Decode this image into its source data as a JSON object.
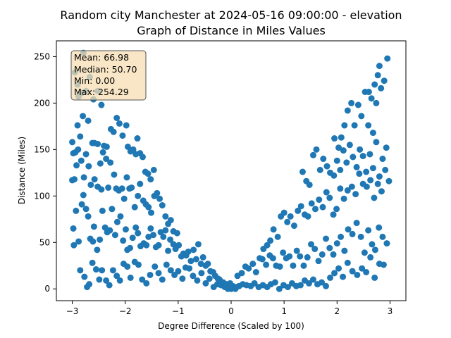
{
  "chart_data": {
    "type": "scatter",
    "title": [
      "Random city Manchester at 2024-05-16 09:00:00  - elevation",
      "Graph of Distance in Miles Values"
    ],
    "xlabel": "Degree Difference (Scaled by 100)",
    "ylabel": "Distance (Miles)",
    "xlim": [
      -3.3,
      3.3
    ],
    "ylim": [
      -12.7,
      267.0
    ],
    "xticks": [
      -3,
      -2,
      -1,
      0,
      1,
      2,
      3
    ],
    "yticks": [
      0,
      50,
      100,
      150,
      200,
      250
    ],
    "color": "#1f77b4",
    "grid": false,
    "stats_box": {
      "lines": [
        "Mean: 66.98",
        "Median: 50.70",
        "Min: 0.00",
        "Max: 254.29"
      ],
      "placement": "top-left",
      "background": "#f5deb3",
      "border": "#555555"
    },
    "points": [
      [
        -2.95,
        233
      ],
      [
        -2.9,
        220
      ],
      [
        -2.88,
        207
      ],
      [
        -2.82,
        211
      ],
      [
        -2.79,
        254
      ],
      [
        -2.74,
        213
      ],
      [
        -2.67,
        228
      ],
      [
        -2.6,
        204
      ],
      [
        -2.52,
        213
      ],
      [
        -2.45,
        198
      ],
      [
        -3.0,
        158
      ],
      [
        -2.98,
        146
      ],
      [
        -2.94,
        147
      ],
      [
        -2.9,
        176
      ],
      [
        -2.85,
        164
      ],
      [
        -2.8,
        186
      ],
      [
        -2.7,
        181
      ],
      [
        -2.62,
        157
      ],
      [
        -2.58,
        157
      ],
      [
        -2.52,
        156
      ],
      [
        -2.47,
        135
      ],
      [
        -2.4,
        154
      ],
      [
        -2.35,
        153
      ],
      [
        -2.27,
        172
      ],
      [
        -2.22,
        169
      ],
      [
        -2.16,
        184
      ],
      [
        -2.11,
        178
      ],
      [
        -2.05,
        165
      ],
      [
        -1.98,
        176
      ],
      [
        -1.95,
        153
      ],
      [
        -1.9,
        148
      ],
      [
        -1.85,
        150
      ],
      [
        -1.8,
        145
      ],
      [
        -1.77,
        162
      ],
      [
        -1.72,
        146
      ],
      [
        -1.67,
        142
      ],
      [
        -1.62,
        126
      ],
      [
        -1.57,
        124
      ],
      [
        -1.52,
        118
      ],
      [
        -1.46,
        128
      ],
      [
        -3.0,
        117
      ],
      [
        -2.96,
        118
      ],
      [
        -2.92,
        133
      ],
      [
        -2.89,
        150
      ],
      [
        -2.83,
        138
      ],
      [
        -2.78,
        120
      ],
      [
        -2.74,
        145
      ],
      [
        -2.69,
        132
      ],
      [
        -2.65,
        112
      ],
      [
        -2.58,
        118
      ],
      [
        -2.52,
        110
      ],
      [
        -2.45,
        107
      ],
      [
        -2.42,
        147
      ],
      [
        -2.36,
        140
      ],
      [
        -2.32,
        109
      ],
      [
        -2.28,
        136
      ],
      [
        -2.21,
        123
      ],
      [
        -2.17,
        108
      ],
      [
        -2.12,
        106
      ],
      [
        -2.06,
        108
      ],
      [
        -2.02,
        97
      ],
      [
        -1.97,
        120
      ],
      [
        -1.92,
        108
      ],
      [
        -1.88,
        109
      ],
      [
        -1.82,
        88
      ],
      [
        -1.76,
        100
      ],
      [
        -1.72,
        113
      ],
      [
        -1.66,
        95
      ],
      [
        -1.61,
        91
      ],
      [
        -1.56,
        88
      ],
      [
        -1.51,
        82
      ],
      [
        -1.45,
        100
      ],
      [
        -1.4,
        103
      ],
      [
        -1.35,
        97
      ],
      [
        -1.3,
        90
      ],
      [
        -1.24,
        78
      ],
      [
        -1.19,
        70
      ],
      [
        -1.14,
        74
      ],
      [
        -1.09,
        62
      ],
      [
        -1.02,
        60
      ],
      [
        -2.98,
        65
      ],
      [
        -2.97,
        47
      ],
      [
        -2.93,
        84
      ],
      [
        -2.88,
        51
      ],
      [
        -2.82,
        91
      ],
      [
        -2.79,
        101
      ],
      [
        -2.74,
        86
      ],
      [
        -2.7,
        78
      ],
      [
        -2.66,
        54
      ],
      [
        -2.61,
        51
      ],
      [
        -2.59,
        67
      ],
      [
        -2.53,
        42
      ],
      [
        -2.48,
        53
      ],
      [
        -2.43,
        84
      ],
      [
        -2.38,
        66
      ],
      [
        -2.34,
        61
      ],
      [
        -2.29,
        63
      ],
      [
        -2.25,
        86
      ],
      [
        -2.19,
        58
      ],
      [
        -2.15,
        72
      ],
      [
        -2.09,
        78
      ],
      [
        -2.04,
        52
      ],
      [
        -1.99,
        64
      ],
      [
        -1.96,
        42
      ],
      [
        -1.91,
        44
      ],
      [
        -1.86,
        55
      ],
      [
        -1.8,
        66
      ],
      [
        -1.76,
        60
      ],
      [
        -1.71,
        46
      ],
      [
        -1.65,
        49
      ],
      [
        -1.6,
        47
      ],
      [
        -1.56,
        56
      ],
      [
        -1.52,
        65
      ],
      [
        -1.47,
        58
      ],
      [
        -1.42,
        45
      ],
      [
        -1.37,
        47
      ],
      [
        -1.33,
        61
      ],
      [
        -1.28,
        56
      ],
      [
        -1.24,
        63
      ],
      [
        -1.19,
        41
      ],
      [
        -1.15,
        53
      ],
      [
        -1.09,
        48
      ],
      [
        -1.05,
        43
      ],
      [
        -0.99,
        47
      ],
      [
        -0.94,
        35
      ],
      [
        -0.9,
        38
      ],
      [
        -0.85,
        36
      ],
      [
        -0.81,
        40
      ],
      [
        -0.76,
        30
      ],
      [
        -0.71,
        42
      ],
      [
        -0.66,
        32
      ],
      [
        -0.62,
        48
      ],
      [
        -0.57,
        27
      ],
      [
        -0.53,
        34
      ],
      [
        -0.48,
        25
      ],
      [
        -0.44,
        27
      ],
      [
        -0.39,
        19
      ],
      [
        -0.34,
        18
      ],
      [
        -0.3,
        14
      ],
      [
        -0.25,
        11
      ],
      [
        -2.85,
        20
      ],
      [
        -2.77,
        13
      ],
      [
        -2.72,
        2
      ],
      [
        -2.68,
        5
      ],
      [
        -2.62,
        28
      ],
      [
        -2.55,
        21
      ],
      [
        -2.49,
        10
      ],
      [
        -2.44,
        20
      ],
      [
        -2.36,
        9
      ],
      [
        -2.3,
        4
      ],
      [
        -2.23,
        20
      ],
      [
        -2.16,
        14
      ],
      [
        -2.1,
        9
      ],
      [
        -2.03,
        27
      ],
      [
        -1.96,
        24
      ],
      [
        -1.9,
        12
      ],
      [
        -1.82,
        29
      ],
      [
        -1.75,
        26
      ],
      [
        -1.68,
        10
      ],
      [
        -1.6,
        6
      ],
      [
        -1.53,
        15
      ],
      [
        -1.44,
        24
      ],
      [
        -1.37,
        17
      ],
      [
        -1.3,
        10
      ],
      [
        -1.22,
        26
      ],
      [
        -1.14,
        20
      ],
      [
        -1.07,
        15
      ],
      [
        -1.0,
        19
      ],
      [
        -0.92,
        11
      ],
      [
        -0.86,
        23
      ],
      [
        -0.79,
        22
      ],
      [
        -0.72,
        14
      ],
      [
        -0.64,
        9
      ],
      [
        -0.56,
        17
      ],
      [
        -0.48,
        6
      ],
      [
        -0.41,
        11
      ],
      [
        -0.33,
        2
      ],
      [
        -0.26,
        5
      ],
      [
        -0.19,
        4
      ],
      [
        -0.12,
        2
      ],
      [
        -0.06,
        0
      ],
      [
        0.0,
        0
      ],
      [
        0.05,
        1
      ],
      [
        0.1,
        2
      ],
      [
        -0.15,
        7
      ],
      [
        -0.22,
        10
      ],
      [
        -0.09,
        5
      ],
      [
        0.03,
        3
      ],
      [
        -0.02,
        6
      ],
      [
        0.08,
        0
      ],
      [
        0.15,
        3
      ],
      [
        0.22,
        5
      ],
      [
        0.29,
        4
      ],
      [
        0.37,
        3
      ],
      [
        0.44,
        6
      ],
      [
        0.52,
        2
      ],
      [
        0.6,
        4
      ],
      [
        0.68,
        2
      ],
      [
        0.75,
        5
      ],
      [
        0.83,
        7
      ],
      [
        0.91,
        0
      ],
      [
        0.99,
        4
      ],
      [
        1.07,
        2
      ],
      [
        1.15,
        6
      ],
      [
        1.23,
        3
      ],
      [
        1.31,
        4
      ],
      [
        1.39,
        9
      ],
      [
        1.47,
        6
      ],
      [
        1.55,
        10
      ],
      [
        1.63,
        5
      ],
      [
        1.71,
        7
      ],
      [
        1.79,
        3
      ],
      [
        1.87,
        12
      ],
      [
        1.95,
        17
      ],
      [
        2.03,
        22
      ],
      [
        2.11,
        13
      ],
      [
        2.2,
        28
      ],
      [
        2.29,
        19
      ],
      [
        2.38,
        15
      ],
      [
        2.47,
        22
      ],
      [
        2.55,
        18
      ],
      [
        2.63,
        34
      ],
      [
        2.71,
        12
      ],
      [
        2.8,
        27
      ],
      [
        2.88,
        26
      ],
      [
        0.12,
        14
      ],
      [
        0.2,
        17
      ],
      [
        0.27,
        24
      ],
      [
        0.33,
        22
      ],
      [
        0.41,
        27
      ],
      [
        0.47,
        18
      ],
      [
        0.54,
        33
      ],
      [
        0.59,
        32
      ],
      [
        0.66,
        26
      ],
      [
        0.73,
        36
      ],
      [
        0.79,
        33
      ],
      [
        0.85,
        25
      ],
      [
        0.92,
        24
      ],
      [
        0.98,
        39
      ],
      [
        1.04,
        33
      ],
      [
        1.1,
        35
      ],
      [
        1.17,
        25
      ],
      [
        1.24,
        41
      ],
      [
        1.3,
        35
      ],
      [
        1.37,
        25
      ],
      [
        1.44,
        34
      ],
      [
        1.51,
        48
      ],
      [
        1.58,
        43
      ],
      [
        1.65,
        30
      ],
      [
        1.72,
        37
      ],
      [
        1.79,
        54
      ],
      [
        1.86,
        44
      ],
      [
        1.93,
        37
      ],
      [
        2.0,
        49
      ],
      [
        2.07,
        56
      ],
      [
        2.14,
        41
      ],
      [
        2.21,
        64
      ],
      [
        2.29,
        59
      ],
      [
        2.37,
        71
      ],
      [
        2.45,
        56
      ],
      [
        2.52,
        39
      ],
      [
        2.59,
        63
      ],
      [
        2.66,
        48
      ],
      [
        2.72,
        42
      ],
      [
        2.79,
        66
      ],
      [
        2.86,
        56
      ],
      [
        2.94,
        49
      ],
      [
        0.61,
        43
      ],
      [
        0.68,
        47
      ],
      [
        0.74,
        52
      ],
      [
        0.8,
        64
      ],
      [
        0.88,
        56
      ],
      [
        0.94,
        78
      ],
      [
        1.0,
        82
      ],
      [
        1.06,
        72
      ],
      [
        1.12,
        78
      ],
      [
        1.19,
        68
      ],
      [
        1.26,
        84
      ],
      [
        1.32,
        89
      ],
      [
        1.39,
        80
      ],
      [
        1.45,
        78
      ],
      [
        1.52,
        92
      ],
      [
        1.59,
        86
      ],
      [
        1.66,
        96
      ],
      [
        1.73,
        88
      ],
      [
        1.8,
        104
      ],
      [
        1.86,
        98
      ],
      [
        1.93,
        80
      ],
      [
        1.99,
        86
      ],
      [
        2.06,
        108
      ],
      [
        2.13,
        97
      ],
      [
        2.2,
        106
      ],
      [
        2.28,
        110
      ],
      [
        2.35,
        102
      ],
      [
        2.42,
        124
      ],
      [
        2.49,
        113
      ],
      [
        2.56,
        110
      ],
      [
        2.63,
        117
      ],
      [
        2.7,
        98
      ],
      [
        2.77,
        113
      ],
      [
        2.84,
        105
      ],
      [
        2.91,
        128
      ],
      [
        2.98,
        116
      ],
      [
        1.35,
        126
      ],
      [
        1.42,
        116
      ],
      [
        1.48,
        112
      ],
      [
        1.55,
        144
      ],
      [
        1.61,
        150
      ],
      [
        1.68,
        128
      ],
      [
        1.74,
        140
      ],
      [
        1.81,
        132
      ],
      [
        1.87,
        125
      ],
      [
        1.94,
        122
      ],
      [
        2.0,
        138
      ],
      [
        2.06,
        128
      ],
      [
        2.12,
        149
      ],
      [
        2.18,
        136
      ],
      [
        2.24,
        155
      ],
      [
        2.3,
        142
      ],
      [
        2.37,
        131
      ],
      [
        2.43,
        150
      ],
      [
        2.49,
        143
      ],
      [
        2.55,
        126
      ],
      [
        2.62,
        145
      ],
      [
        2.68,
        130
      ],
      [
        2.74,
        158
      ],
      [
        2.8,
        121
      ],
      [
        2.86,
        140
      ],
      [
        2.93,
        152
      ],
      [
        1.95,
        162
      ],
      [
        2.03,
        152
      ],
      [
        2.08,
        163
      ],
      [
        2.14,
        176
      ],
      [
        2.2,
        192
      ],
      [
        2.27,
        200
      ],
      [
        2.33,
        176
      ],
      [
        2.4,
        198
      ],
      [
        2.46,
        186
      ],
      [
        2.53,
        212
      ],
      [
        2.59,
        176
      ],
      [
        2.65,
        205
      ],
      [
        2.71,
        220
      ],
      [
        2.77,
        230
      ],
      [
        2.83,
        216
      ],
      [
        2.89,
        224
      ],
      [
        2.95,
        248
      ],
      [
        2.6,
        212
      ],
      [
        2.68,
        168
      ],
      [
        2.74,
        200
      ],
      [
        2.8,
        240
      ]
    ]
  }
}
